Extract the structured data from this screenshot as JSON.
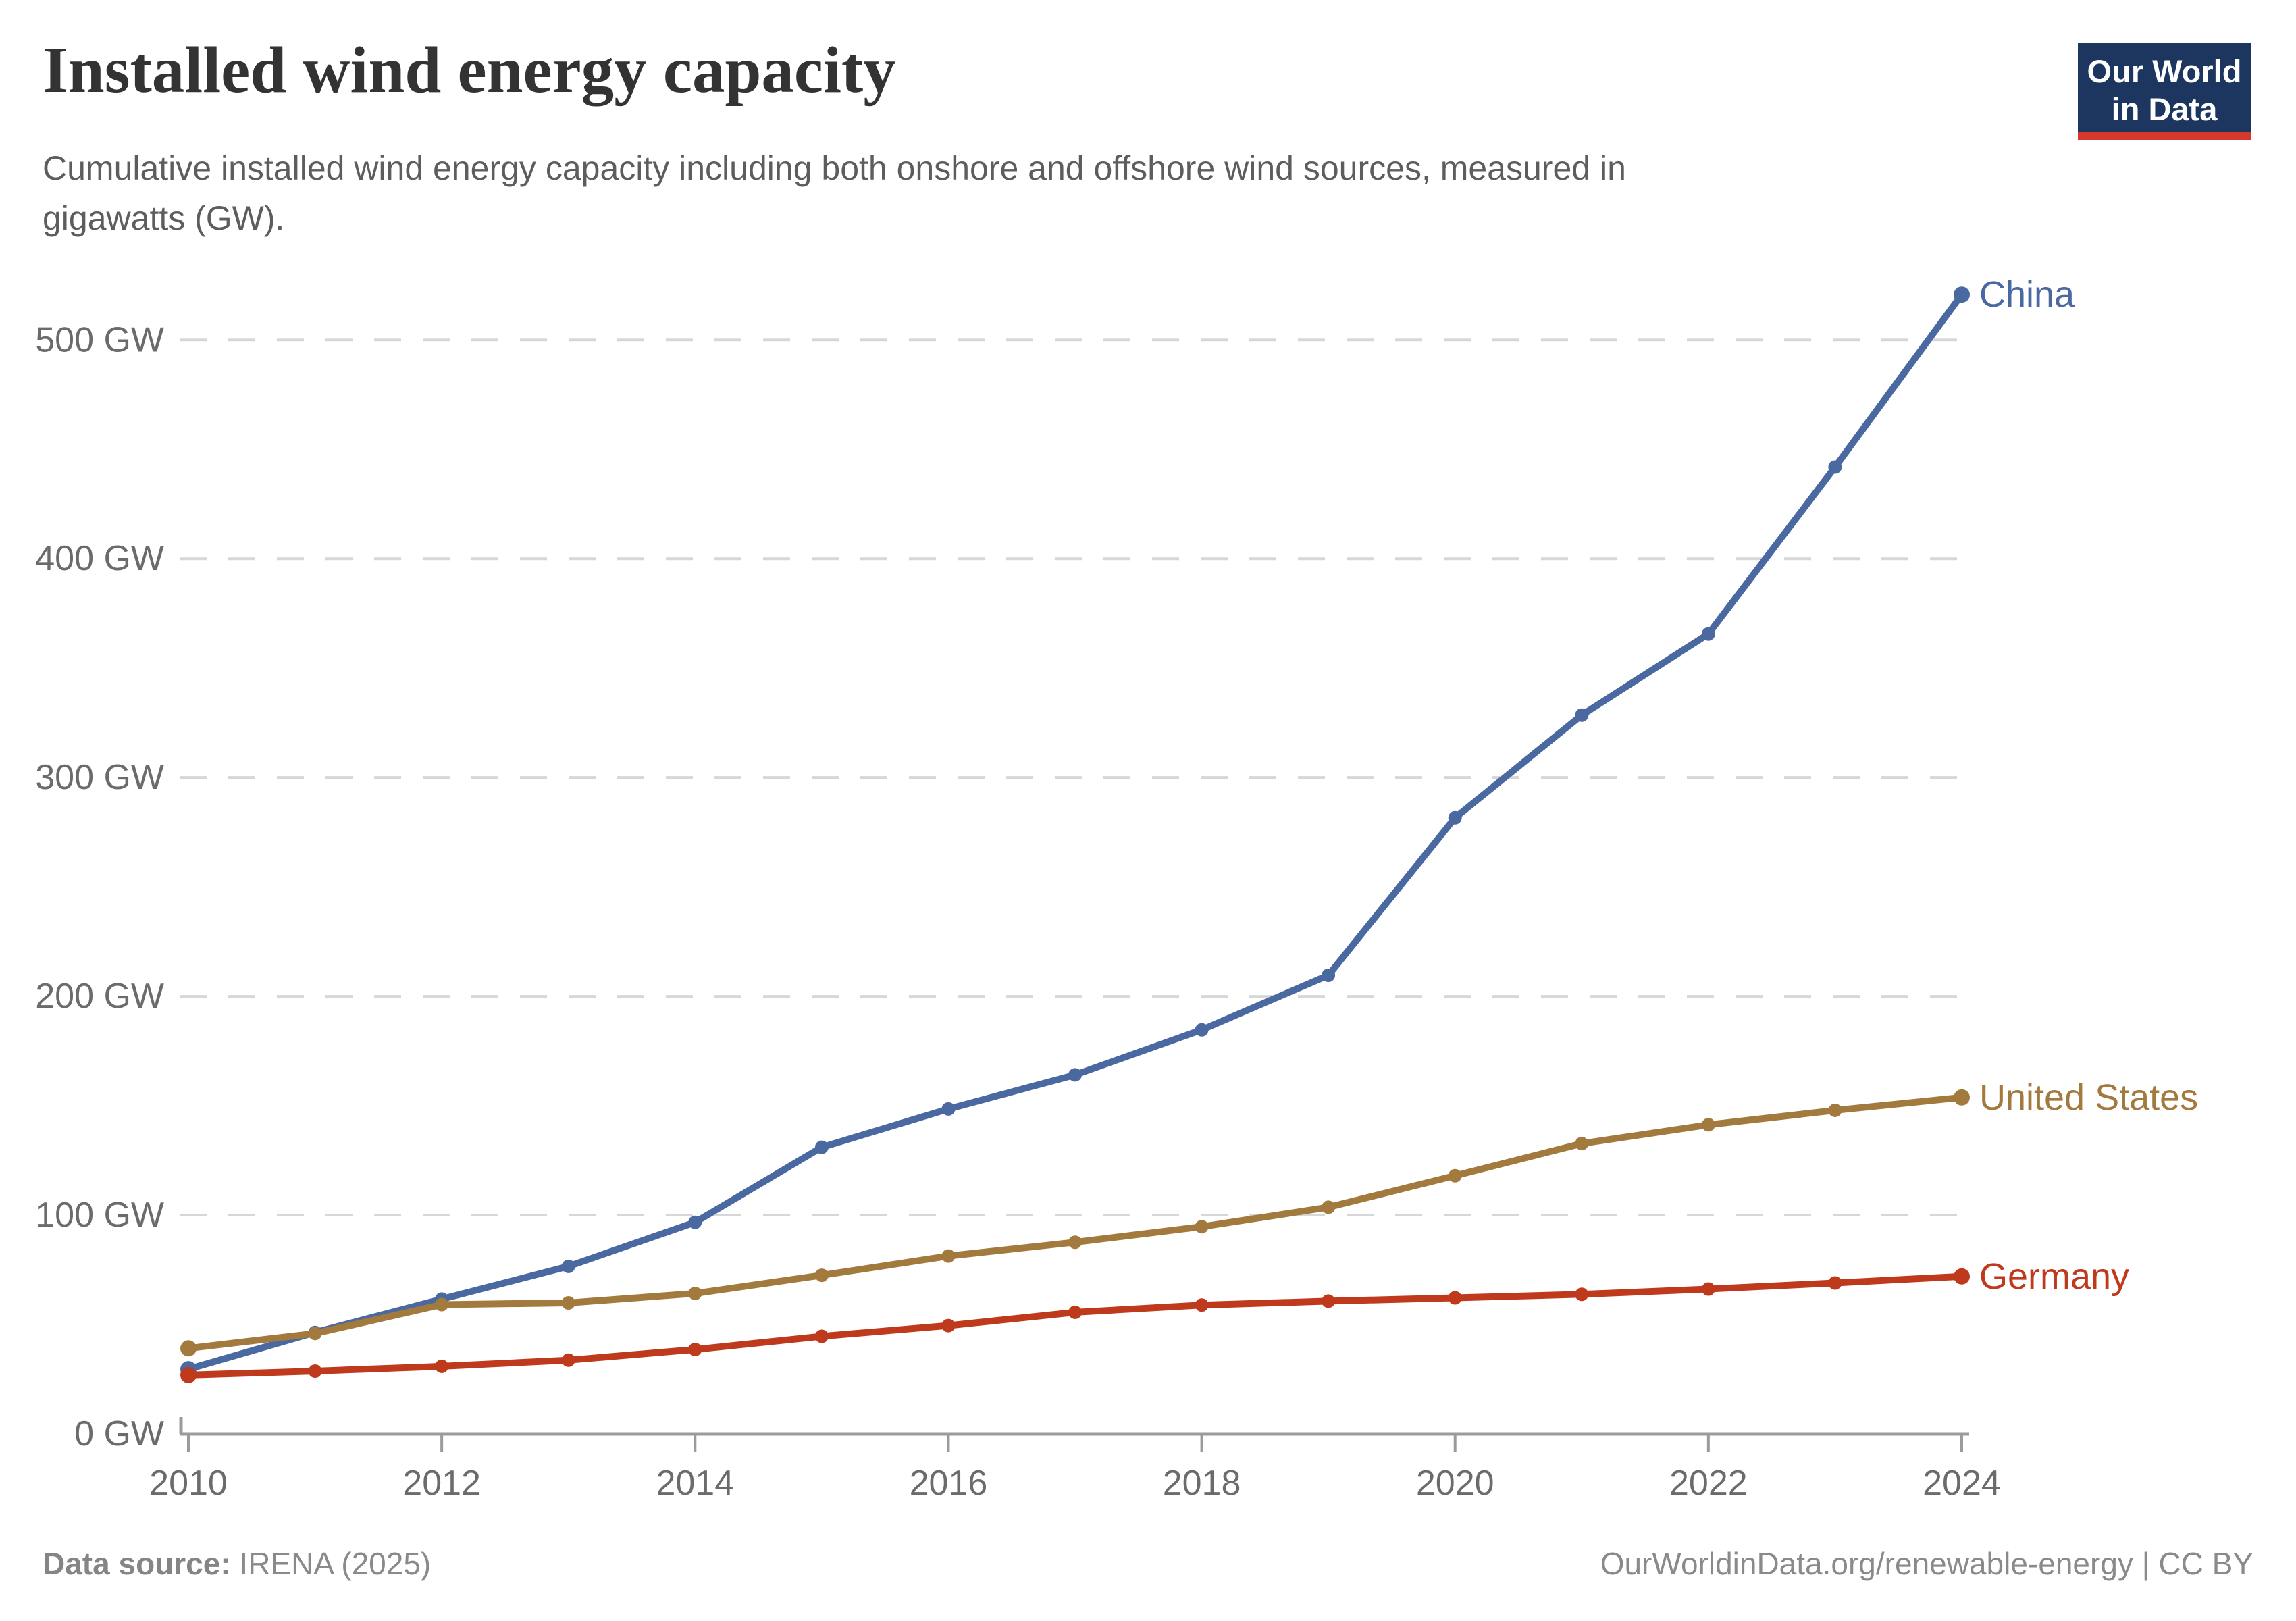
{
  "header": {
    "title": "Installed wind energy capacity",
    "subtitle_lines": [
      "Cumulative installed wind energy capacity including both onshore and offshore wind sources, measured in",
      "gigawatts (GW)."
    ]
  },
  "logo": {
    "line1": "Our World",
    "line2": "in Data",
    "bg_color": "#1d3660",
    "bar_color": "#d5392e"
  },
  "chart_data": {
    "type": "line",
    "title": "Installed wind energy capacity",
    "xlabel": "",
    "ylabel": "Gigawatts (GW)",
    "xlim": [
      2010,
      2024
    ],
    "ylim": [
      0,
      540
    ],
    "grid": "horizontal dashed",
    "legend": "end-of-line labels",
    "x": [
      2010,
      2011,
      2012,
      2013,
      2014,
      2015,
      2016,
      2017,
      2018,
      2019,
      2020,
      2021,
      2022,
      2023,
      2024
    ],
    "x_ticks": [
      {
        "year": 2010,
        "label": "2010"
      },
      {
        "year": 2012,
        "label": "2012"
      },
      {
        "year": 2014,
        "label": "2014"
      },
      {
        "year": 2016,
        "label": "2016"
      },
      {
        "year": 2018,
        "label": "2018"
      },
      {
        "year": 2020,
        "label": "2020"
      },
      {
        "year": 2022,
        "label": "2022"
      },
      {
        "year": 2024,
        "label": "2024"
      }
    ],
    "y_ticks": [
      {
        "value": 0,
        "label": "0 GW"
      },
      {
        "value": 100,
        "label": "100 GW"
      },
      {
        "value": 200,
        "label": "200 GW"
      },
      {
        "value": 300,
        "label": "300 GW"
      },
      {
        "value": 400,
        "label": "400 GW"
      },
      {
        "value": 500,
        "label": "500 GW"
      }
    ],
    "series": [
      {
        "name": "China",
        "color": "#4b69a1",
        "values": [
          29.6,
          46.4,
          61.6,
          76.6,
          96.7,
          131.0,
          148.5,
          164.1,
          184.7,
          209.6,
          281.6,
          328.5,
          365.6,
          441.9,
          520.7
        ]
      },
      {
        "name": "United States",
        "color": "#a37a3e",
        "values": [
          39.1,
          45.9,
          59.1,
          59.9,
          64.2,
          72.5,
          81.3,
          87.6,
          94.7,
          103.6,
          118.0,
          132.7,
          141.3,
          147.9,
          153.8
        ]
      },
      {
        "name": "Germany",
        "color": "#bf3a1d",
        "values": [
          26.9,
          28.7,
          30.9,
          33.7,
          38.6,
          44.6,
          49.5,
          55.6,
          58.9,
          60.7,
          62.2,
          63.8,
          66.2,
          69.0,
          72.0
        ]
      }
    ],
    "style": {
      "grid_color": "#d7d7d7",
      "axis_color": "#9b9b9b",
      "tick_label_color": "#6b6b6b"
    }
  },
  "footer": {
    "source_label": "Data source:",
    "source_value": " IRENA (2025)",
    "attribution": "OurWorldinData.org/renewable-energy | CC BY"
  }
}
